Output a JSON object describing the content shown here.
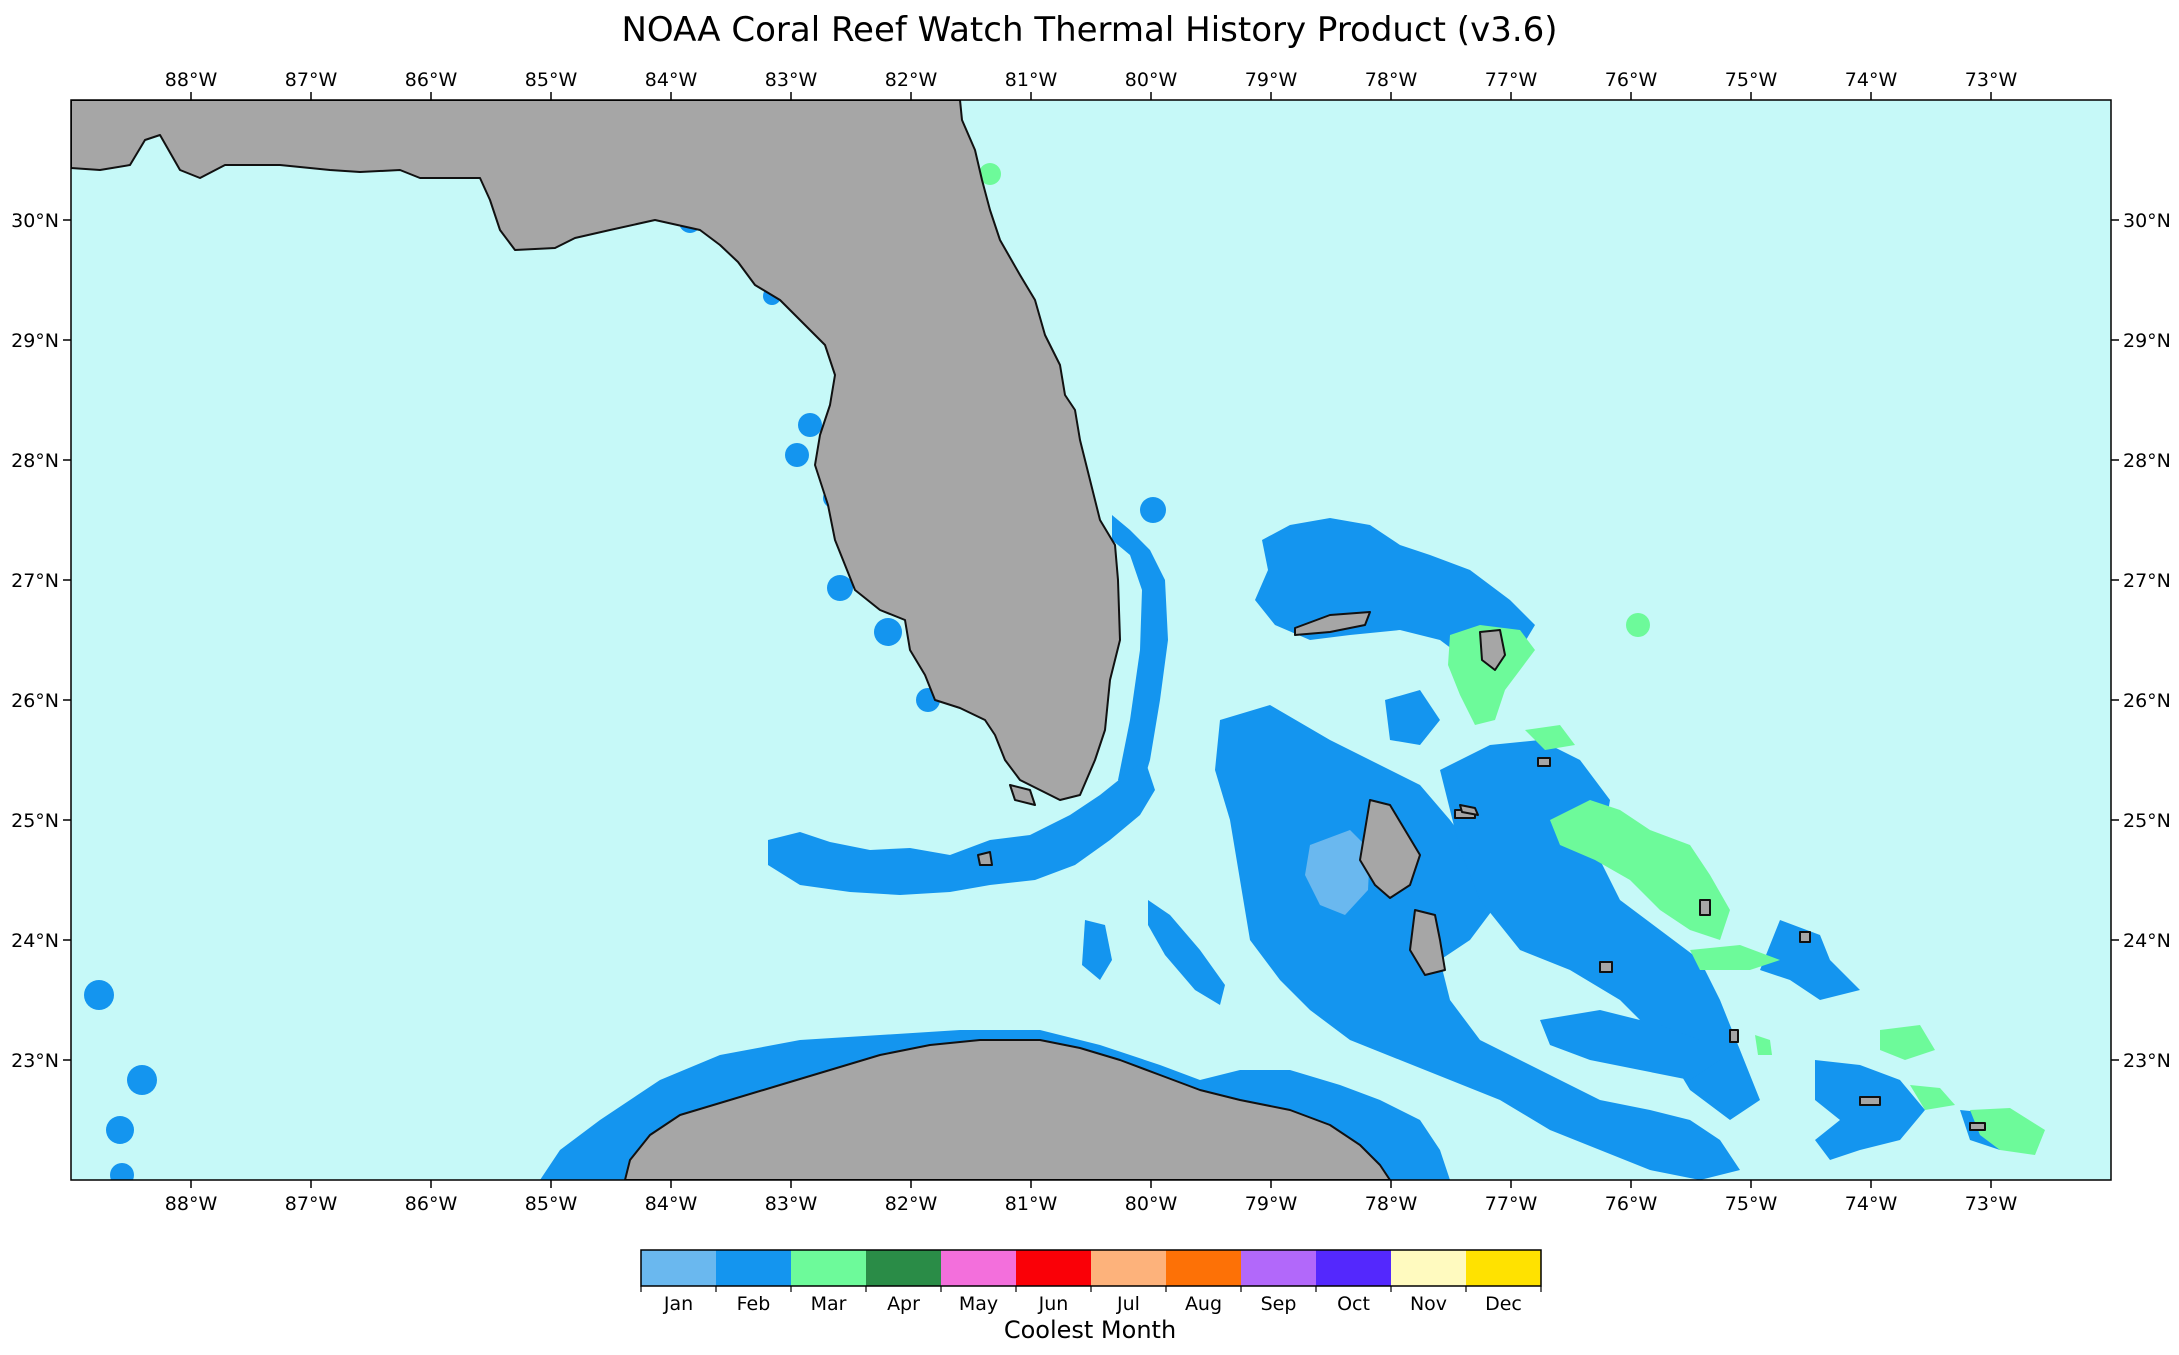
{
  "title": "NOAA Coral Reef Watch Thermal History Product (v3.6)",
  "map": {
    "lon_range": [
      -89.0,
      -72.0
    ],
    "lat_range": [
      22.0,
      31.0
    ],
    "lon_ticks": [
      {
        "value": -88,
        "label": "88°W"
      },
      {
        "value": -87,
        "label": "87°W"
      },
      {
        "value": -86,
        "label": "86°W"
      },
      {
        "value": -85,
        "label": "85°W"
      },
      {
        "value": -84,
        "label": "84°W"
      },
      {
        "value": -83,
        "label": "83°W"
      },
      {
        "value": -82,
        "label": "82°W"
      },
      {
        "value": -81,
        "label": "81°W"
      },
      {
        "value": -80,
        "label": "80°W"
      },
      {
        "value": -79,
        "label": "79°W"
      },
      {
        "value": -78,
        "label": "78°W"
      },
      {
        "value": -77,
        "label": "77°W"
      },
      {
        "value": -76,
        "label": "76°W"
      },
      {
        "value": -75,
        "label": "75°W"
      },
      {
        "value": -74,
        "label": "74°W"
      },
      {
        "value": -73,
        "label": "73°W"
      }
    ],
    "lat_ticks": [
      {
        "value": 23,
        "label": "23°N"
      },
      {
        "value": 24,
        "label": "24°N"
      },
      {
        "value": 25,
        "label": "25°N"
      },
      {
        "value": 26,
        "label": "26°N"
      },
      {
        "value": 27,
        "label": "27°N"
      },
      {
        "value": 28,
        "label": "28°N"
      },
      {
        "value": 29,
        "label": "29°N"
      },
      {
        "value": 30,
        "label": "30°N"
      }
    ],
    "colors": {
      "ocean": "#c6f9f8",
      "land": "#a6a6a6",
      "coastline": "#111111"
    }
  },
  "colorbar": {
    "label": "Coolest Month",
    "months": [
      {
        "label": "Jan",
        "color": "#6ab8ef"
      },
      {
        "label": "Feb",
        "color": "#1495ef"
      },
      {
        "label": "Mar",
        "color": "#6dfa9a"
      },
      {
        "label": "Apr",
        "color": "#2a8c47"
      },
      {
        "label": "May",
        "color": "#f36fdc"
      },
      {
        "label": "Jun",
        "color": "#fa0007"
      },
      {
        "label": "Jul",
        "color": "#fdb27b"
      },
      {
        "label": "Aug",
        "color": "#fd7106"
      },
      {
        "label": "Sep",
        "color": "#b268fa"
      },
      {
        "label": "Oct",
        "color": "#5428fd"
      },
      {
        "label": "Nov",
        "color": "#fffabf"
      },
      {
        "label": "Dec",
        "color": "#ffe200"
      }
    ]
  }
}
